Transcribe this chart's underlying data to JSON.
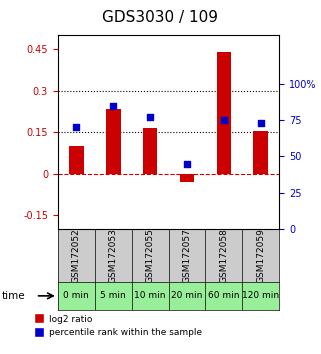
{
  "title": "GDS3030 / 109",
  "categories": [
    "GSM172052",
    "GSM172053",
    "GSM172055",
    "GSM172057",
    "GSM172058",
    "GSM172059"
  ],
  "time_labels": [
    "0 min",
    "5 min",
    "10 min",
    "20 min",
    "60 min",
    "120 min"
  ],
  "log2_ratio": [
    0.1,
    0.235,
    0.165,
    -0.03,
    0.44,
    0.155
  ],
  "percentile_rank": [
    70,
    85,
    77,
    45,
    75,
    73
  ],
  "left_ylim": [
    -0.2,
    0.5
  ],
  "right_ylim": [
    0,
    133.33
  ],
  "left_yticks": [
    -0.15,
    0,
    0.15,
    0.3,
    0.45
  ],
  "left_ytick_labels": [
    "-0.15",
    "0",
    "0.15",
    "0.3",
    "0.45"
  ],
  "right_yticks": [
    0,
    25,
    50,
    75,
    100
  ],
  "right_ytick_labels": [
    "0",
    "25",
    "50",
    "75",
    "100%"
  ],
  "hlines": [
    0.15,
    0.3
  ],
  "bar_color": "#cc0000",
  "dot_color": "#0000cc",
  "zero_line_color": "#cc0000",
  "hline_color": "#000000",
  "bg_color": "#ffffff",
  "time_row_color": "#99ee99",
  "sample_row_color": "#cccccc",
  "legend_bar_label": "log2 ratio",
  "legend_dot_label": "percentile rank within the sample",
  "left_axis_color": "#cc0000",
  "right_axis_color": "#0000cc"
}
